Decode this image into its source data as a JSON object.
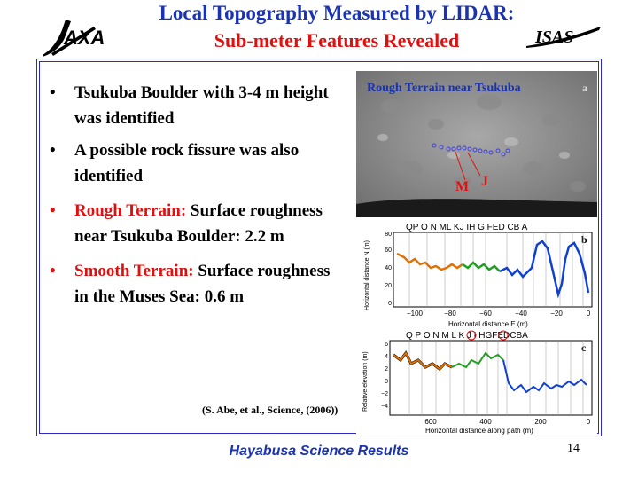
{
  "header": {
    "title_line1": "Local Topography Measured by LIDAR:",
    "title_line2": "Sub-meter Features Revealed",
    "logo_left": "JAXA",
    "logo_right": "ISAS"
  },
  "bullets": [
    {
      "lead": "",
      "text": "Tsukuba Boulder with 3-4 m height was identified"
    },
    {
      "lead": "",
      "text": "A possible rock fissure was also identified"
    },
    {
      "lead": "Rough Terrain:",
      "text": " Surface roughness near Tsukuba Boulder: 2.2 m"
    },
    {
      "lead": "Smooth Terrain:",
      "text": " Surface roughness in the Muses Sea: 0.6 m"
    }
  ],
  "citation": "(S. Abe, et al., Science, (2006))",
  "footer": "Hayabusa Science Results",
  "page_number": "14",
  "figure": {
    "photo_label": "Rough Terrain near Tsukuba",
    "panel_a": "a",
    "marker_m": "M",
    "marker_j": "J",
    "panel_b": {
      "tag": "b",
      "letters": "QP O N ML KJ IH G FED CB A",
      "ylabel": "Horizontal distance N (m)",
      "xlabel": "Horizontal distance E (m)",
      "xticks": [
        "−100",
        "−80",
        "−60",
        "−40",
        "−20",
        "0"
      ],
      "yticks": [
        "0",
        "20",
        "40",
        "60",
        "80"
      ]
    },
    "panel_c": {
      "tag": "c",
      "letters": "Q P O N M L K J I HGFEDCBA",
      "ylabel": "Relative elevation (m)",
      "xlabel": "Horizontal distance along path (m)",
      "xticks": [
        "600",
        "400",
        "200",
        "0"
      ],
      "yticks": [
        "6",
        "4",
        "2",
        "0",
        "−2",
        "−4"
      ]
    }
  },
  "colors": {
    "title_blue": "#1a33b3",
    "accent_red": "#e01010",
    "frame_blue": "#2a2acc"
  }
}
